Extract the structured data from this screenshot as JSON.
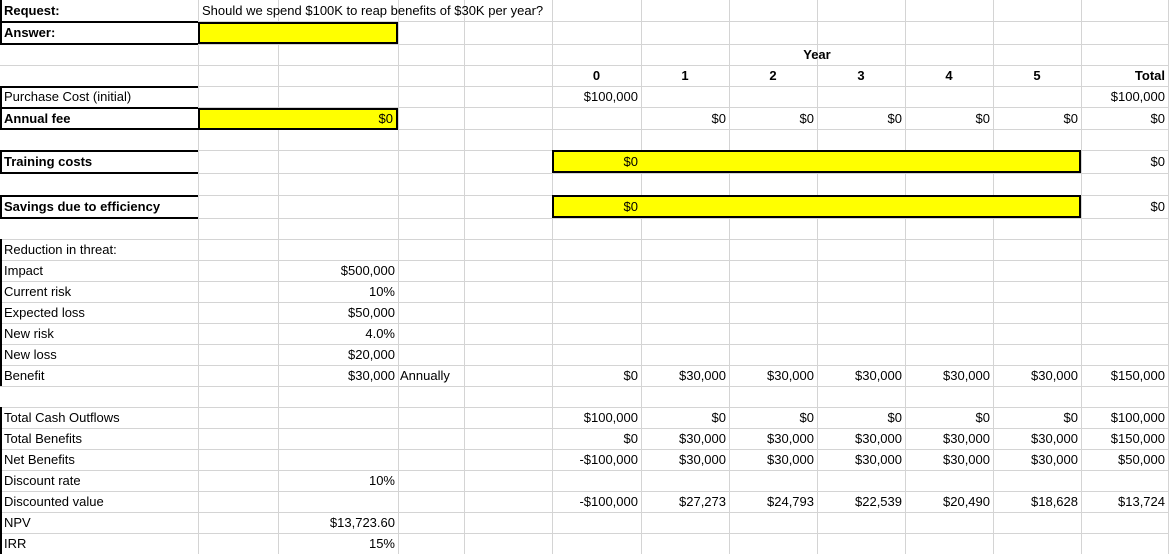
{
  "request": {
    "label": "Request:",
    "text": "Should we spend $100K to reap benefits of $30K per year?"
  },
  "answer": {
    "label": "Answer:",
    "value": ""
  },
  "header": {
    "year_label": "Year",
    "years": [
      "0",
      "1",
      "2",
      "3",
      "4",
      "5"
    ],
    "total": "Total"
  },
  "purchase": {
    "label": "Purchase Cost (initial)",
    "y0": "$100,000",
    "total": "$100,000"
  },
  "annual_fee": {
    "label": "Annual fee",
    "input": "$0",
    "years": [
      "$0",
      "$0",
      "$0",
      "$0",
      "$0"
    ],
    "total": "$0"
  },
  "training": {
    "label": "Training costs",
    "input": "$0",
    "total": "$0"
  },
  "savings": {
    "label": "Savings due to efficiency",
    "input": "$0",
    "total": "$0"
  },
  "threat": {
    "heading": "Reduction in threat:",
    "impact": {
      "label": "Impact",
      "value": "$500,000"
    },
    "current_risk": {
      "label": "Current risk",
      "value": "10%"
    },
    "expected_loss": {
      "label": "Expected loss",
      "value": "$50,000"
    },
    "new_risk": {
      "label": "New risk",
      "value": "4.0%"
    },
    "new_loss": {
      "label": "New loss",
      "value": "$20,000"
    },
    "benefit": {
      "label": "Benefit",
      "value": "$30,000",
      "note": "Annually",
      "years": [
        "$0",
        "$30,000",
        "$30,000",
        "$30,000",
        "$30,000",
        "$30,000"
      ],
      "total": "$150,000"
    }
  },
  "totals": {
    "outflows": {
      "label": "Total Cash Outflows",
      "years": [
        "$100,000",
        "$0",
        "$0",
        "$0",
        "$0",
        "$0"
      ],
      "total": "$100,000"
    },
    "benefits": {
      "label": "Total Benefits",
      "years": [
        "$0",
        "$30,000",
        "$30,000",
        "$30,000",
        "$30,000",
        "$30,000"
      ],
      "total": "$150,000"
    },
    "net": {
      "label": "Net Benefits",
      "years": [
        "-$100,000",
        "$30,000",
        "$30,000",
        "$30,000",
        "$30,000",
        "$30,000"
      ],
      "total": "$50,000"
    },
    "discount_rate": {
      "label": "Discount rate",
      "value": "10%"
    },
    "discounted": {
      "label": "Discounted value",
      "years": [
        "-$100,000",
        "$27,273",
        "$24,793",
        "$22,539",
        "$20,490",
        "$18,628"
      ],
      "total": "$13,724"
    },
    "npv": {
      "label": "NPV",
      "value": "$13,723.60"
    },
    "irr": {
      "label": "IRR",
      "value": "15%"
    }
  },
  "colors": {
    "input_fill": "#ffff00",
    "grid": "#d4d4d4"
  }
}
